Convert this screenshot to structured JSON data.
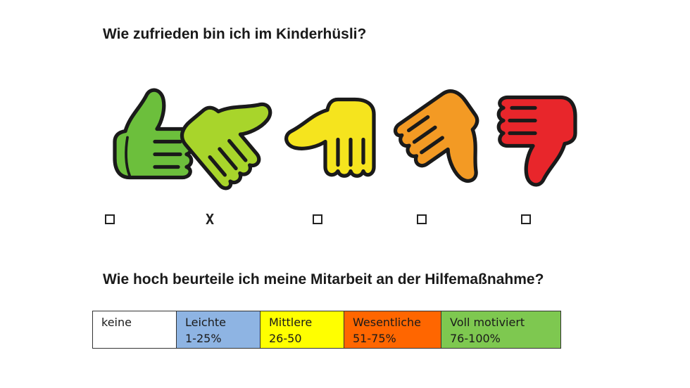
{
  "questions": {
    "satisfaction": "Wie zufrieden bin ich im Kinderhüsli?",
    "cooperation": "Wie hoch beurteile ich meine Mitarbeit an der Hilfemaßnahme?"
  },
  "thumbs": [
    {
      "icon": "thumb-up-icon",
      "color": "#6cbf3c",
      "checked": false
    },
    {
      "icon": "thumb-up-tilted-icon",
      "color": "#a8d52b",
      "checked": true
    },
    {
      "icon": "thumb-sideways-icon",
      "color": "#f5e41e",
      "checked": false
    },
    {
      "icon": "thumb-down-tilted-icon",
      "color": "#f39a24",
      "checked": false
    },
    {
      "icon": "thumb-down-icon",
      "color": "#e8262b",
      "checked": false
    }
  ],
  "check_mark": "X",
  "scale": [
    {
      "label": "keine",
      "range": "",
      "color": "#ffffff"
    },
    {
      "label": "Leichte",
      "range": "1-25%",
      "color": "#8eb4e3"
    },
    {
      "label": "Mittlere",
      "range": "26-50",
      "color": "#ffff00"
    },
    {
      "label": "Wesentliche",
      "range": "51-75%",
      "color": "#ff6600"
    },
    {
      "label": "Voll motiviert",
      "range": "76-100%",
      "color": "#7ec850"
    }
  ]
}
